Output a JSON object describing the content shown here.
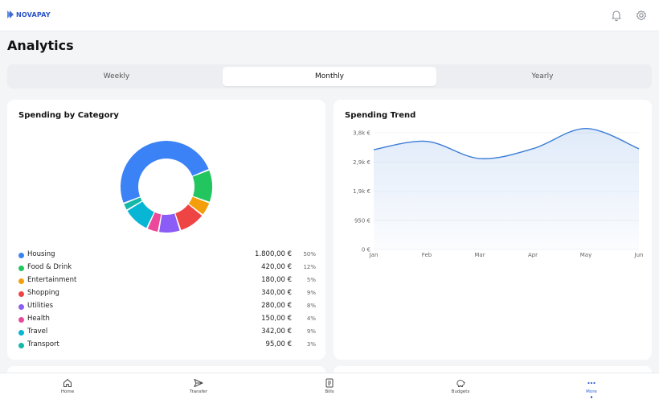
{
  "app": {
    "name": "NOVAPAY",
    "brand_color": "#2b55c6"
  },
  "header": {
    "bell_icon": "bell-icon",
    "settings_icon": "gear-icon"
  },
  "page": {
    "title": "Analytics"
  },
  "tabs": [
    {
      "label": "Weekly",
      "active": false
    },
    {
      "label": "Monthly",
      "active": true
    },
    {
      "label": "Yearly",
      "active": false
    }
  ],
  "spending_by_category": {
    "title": "Spending by Category",
    "items": [
      {
        "name": "Housing",
        "amount": "1.800,00 €",
        "percent": "50%",
        "color": "#3b82f6"
      },
      {
        "name": "Food & Drink",
        "amount": "420,00 €",
        "percent": "12%",
        "color": "#22c55e"
      },
      {
        "name": "Entertainment",
        "amount": "180,00 €",
        "percent": "5%",
        "color": "#f59e0b"
      },
      {
        "name": "Shopping",
        "amount": "340,00 €",
        "percent": "9%",
        "color": "#ef4444"
      },
      {
        "name": "Utilities",
        "amount": "280,00 €",
        "percent": "8%",
        "color": "#8b5cf6"
      },
      {
        "name": "Health",
        "amount": "150,00 €",
        "percent": "4%",
        "color": "#ec4899"
      },
      {
        "name": "Travel",
        "amount": "342,00 €",
        "percent": "9%",
        "color": "#06b6d4"
      },
      {
        "name": "Transport",
        "amount": "95,00 €",
        "percent": "3%",
        "color": "#14b8a6"
      }
    ]
  },
  "chart_data": [
    {
      "type": "pie",
      "title": "Spending by Category",
      "categories": [
        "Housing",
        "Food & Drink",
        "Entertainment",
        "Shopping",
        "Utilities",
        "Health",
        "Travel",
        "Transport"
      ],
      "values": [
        1800,
        420,
        180,
        340,
        280,
        150,
        342,
        95
      ],
      "colors": [
        "#3b82f6",
        "#22c55e",
        "#f59e0b",
        "#ef4444",
        "#8b5cf6",
        "#ec4899",
        "#06b6d4",
        "#14b8a6"
      ],
      "style": "donut"
    },
    {
      "type": "area",
      "title": "Spending Trend",
      "categories": [
        "Jan",
        "Feb",
        "Mar",
        "Apr",
        "May",
        "Jun"
      ],
      "values": [
        3250,
        3520,
        2960,
        3280,
        3940,
        3280
      ],
      "yticks": [
        "0 €",
        "950 €",
        "1,9k €",
        "2,9k €",
        "3,8k €"
      ],
      "ytick_values": [
        0,
        950,
        1900,
        2850,
        3800
      ],
      "ylim": [
        0,
        3800
      ],
      "color": "#3b7dd8",
      "grid": true
    }
  ],
  "spending_trend": {
    "title": "Spending Trend"
  },
  "bottom_nav": [
    {
      "label": "Home",
      "icon": "home-icon",
      "active": false
    },
    {
      "label": "Transfer",
      "icon": "send-icon",
      "active": false
    },
    {
      "label": "Bills",
      "icon": "receipt-icon",
      "active": false
    },
    {
      "label": "Budgets",
      "icon": "piggy-bank-icon",
      "active": false
    },
    {
      "label": "More",
      "icon": "more-icon",
      "active": true
    }
  ],
  "accent_color": "#2b62d9"
}
